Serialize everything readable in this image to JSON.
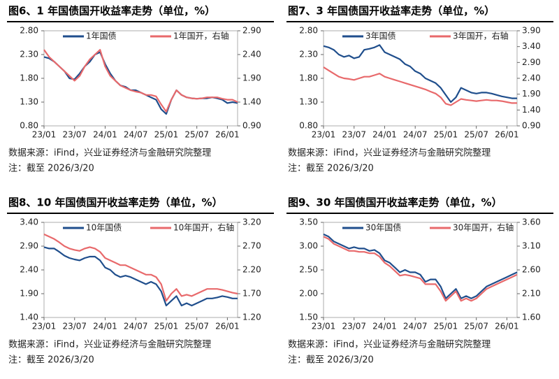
{
  "chart_data": [
    {
      "type": "line",
      "title": "图6、1 年国债国开收益率走势（单位，%）",
      "notes": [
        "数据来源：iFind，兴业证券经济与金融研究院整理",
        "注：截至 2026/3/20"
      ],
      "x": [
        "23/01",
        null,
        null,
        null,
        null,
        null,
        "23/07",
        null,
        null,
        null,
        null,
        null,
        "24/01",
        null,
        null,
        null,
        null,
        null,
        "24/07",
        null,
        null,
        null,
        null,
        null,
        "25/01",
        null,
        null,
        null,
        null,
        null,
        "25/07",
        null,
        null,
        null,
        null,
        null,
        "26/01",
        null,
        null
      ],
      "ylim": [
        0.8,
        2.8
      ],
      "yticks": [
        {
          "value": 0.8,
          "label": "0.80"
        },
        {
          "value": 1.3,
          "label": "1.30"
        },
        {
          "value": 1.8,
          "label": "1.80"
        },
        {
          "value": 2.3,
          "label": "2.30"
        },
        {
          "value": 2.8,
          "label": "2.80"
        }
      ],
      "y2lim": [
        0.9,
        2.9
      ],
      "y2ticks": [
        {
          "value": 0.9,
          "label": "0.90"
        },
        {
          "value": 1.4,
          "label": "1.40"
        },
        {
          "value": 1.9,
          "label": "1.90"
        },
        {
          "value": 2.4,
          "label": "2.40"
        },
        {
          "value": 2.9,
          "label": "2.90"
        }
      ],
      "series": [
        {
          "name": "1年国债",
          "color": "#1f4e8c",
          "values": [
            2.25,
            2.22,
            2.15,
            2.05,
            1.95,
            1.8,
            1.78,
            1.9,
            2.05,
            2.15,
            2.3,
            2.35,
            2.1,
            1.9,
            1.75,
            1.65,
            1.62,
            1.55,
            1.55,
            1.5,
            1.45,
            1.4,
            1.35,
            1.15,
            1.05,
            1.35,
            1.55,
            1.45,
            1.4,
            1.38,
            1.37,
            1.38,
            1.38,
            1.4,
            1.38,
            1.35,
            1.28,
            1.3,
            1.28
          ]
        },
        {
          "name": "1年国开，右轴",
          "color": "#e8696b",
          "axis": "y2",
          "values": [
            2.5,
            2.35,
            2.25,
            2.15,
            2.05,
            1.95,
            1.85,
            1.95,
            2.15,
            2.3,
            2.4,
            2.5,
            2.15,
            1.95,
            1.85,
            1.75,
            1.7,
            1.65,
            1.62,
            1.6,
            1.55,
            1.55,
            1.52,
            1.35,
            1.2,
            1.45,
            1.65,
            1.55,
            1.5,
            1.48,
            1.47,
            1.48,
            1.5,
            1.5,
            1.5,
            1.47,
            1.45,
            1.45,
            1.4
          ]
        }
      ]
    },
    {
      "type": "line",
      "title": "图7、3 年国债国开收益率走势（单位，%）",
      "notes": [
        "数据来源：iFind，兴业证券经济与金融研究院整理",
        "注：截至 2026/3/20"
      ],
      "x": [
        "23/01",
        null,
        null,
        null,
        null,
        null,
        "23/07",
        null,
        null,
        null,
        null,
        null,
        "24/01",
        null,
        null,
        null,
        null,
        null,
        "24/07",
        null,
        null,
        null,
        null,
        null,
        "25/01",
        null,
        null,
        null,
        null,
        null,
        "25/07",
        null,
        null,
        null,
        null,
        null,
        "26/01",
        null,
        null
      ],
      "ylim": [
        0.8,
        2.8
      ],
      "yticks": [
        {
          "value": 0.8,
          "label": "0.80"
        },
        {
          "value": 1.3,
          "label": "1.30"
        },
        {
          "value": 1.8,
          "label": "1.80"
        },
        {
          "value": 2.3,
          "label": "2.30"
        },
        {
          "value": 2.8,
          "label": "2.80"
        }
      ],
      "y2lim": [
        0.9,
        3.9
      ],
      "y2ticks": [
        {
          "value": 0.9,
          "label": "0.90"
        },
        {
          "value": 1.4,
          "label": "1.40"
        },
        {
          "value": 1.9,
          "label": "1.90"
        },
        {
          "value": 2.4,
          "label": "2.40"
        },
        {
          "value": 2.9,
          "label": "2.90"
        },
        {
          "value": 3.4,
          "label": "3.40"
        },
        {
          "value": 3.9,
          "label": "3.90"
        }
      ],
      "series": [
        {
          "name": "3年国债",
          "color": "#1f4e8c",
          "values": [
            2.48,
            2.45,
            2.4,
            2.3,
            2.25,
            2.28,
            2.22,
            2.25,
            2.4,
            2.42,
            2.45,
            2.5,
            2.35,
            2.3,
            2.25,
            2.2,
            2.1,
            2.05,
            1.95,
            1.9,
            1.8,
            1.75,
            1.7,
            1.6,
            1.45,
            1.3,
            1.4,
            1.6,
            1.55,
            1.5,
            1.48,
            1.5,
            1.5,
            1.48,
            1.45,
            1.42,
            1.4,
            1.38,
            1.38
          ]
        },
        {
          "name": "3年国开，右轴",
          "color": "#e8696b",
          "axis": "y2",
          "values": [
            2.75,
            2.65,
            2.55,
            2.45,
            2.4,
            2.38,
            2.35,
            2.4,
            2.45,
            2.45,
            2.5,
            2.55,
            2.45,
            2.4,
            2.35,
            2.3,
            2.25,
            2.2,
            2.15,
            2.1,
            2.05,
            1.98,
            1.92,
            1.8,
            1.6,
            1.55,
            1.65,
            1.75,
            1.72,
            1.7,
            1.68,
            1.7,
            1.72,
            1.7,
            1.7,
            1.68,
            1.65,
            1.62,
            1.62
          ]
        }
      ]
    },
    {
      "type": "line",
      "title": "图8、10 年国债国开收益率走势（单位，%）",
      "notes": [
        "数据来源：iFind，兴业证券经济与金融研究院整理",
        "注：截至 2026/3/20"
      ],
      "x": [
        "23/01",
        null,
        null,
        null,
        null,
        null,
        "23/07",
        null,
        null,
        null,
        null,
        null,
        "24/01",
        null,
        null,
        null,
        null,
        null,
        "24/07",
        null,
        null,
        null,
        null,
        null,
        "25/01",
        null,
        null,
        null,
        null,
        null,
        "25/07",
        null,
        null,
        null,
        null,
        null,
        "26/01",
        null,
        null
      ],
      "ylim": [
        1.4,
        3.4
      ],
      "yticks": [
        {
          "value": 1.4,
          "label": "1.40"
        },
        {
          "value": 1.9,
          "label": "1.90"
        },
        {
          "value": 2.4,
          "label": "2.40"
        },
        {
          "value": 2.9,
          "label": "2.90"
        },
        {
          "value": 3.4,
          "label": "3.40"
        }
      ],
      "y2lim": [
        1.2,
        3.2
      ],
      "y2ticks": [
        {
          "value": 1.2,
          "label": "1.20"
        },
        {
          "value": 1.7,
          "label": "1.70"
        },
        {
          "value": 2.2,
          "label": "2.20"
        },
        {
          "value": 2.7,
          "label": "2.70"
        },
        {
          "value": 3.2,
          "label": "3.20"
        }
      ],
      "series": [
        {
          "name": "10年国债",
          "color": "#1f4e8c",
          "values": [
            2.88,
            2.85,
            2.85,
            2.78,
            2.7,
            2.65,
            2.62,
            2.6,
            2.65,
            2.68,
            2.68,
            2.6,
            2.45,
            2.4,
            2.3,
            2.25,
            2.28,
            2.25,
            2.2,
            2.15,
            2.1,
            2.15,
            2.1,
            1.95,
            1.65,
            1.75,
            1.85,
            1.65,
            1.7,
            1.65,
            1.7,
            1.75,
            1.8,
            1.8,
            1.82,
            1.85,
            1.83,
            1.8,
            1.8
          ]
        },
        {
          "name": "10年国开，右轴",
          "color": "#e8696b",
          "axis": "y2",
          "values": [
            2.95,
            2.9,
            2.85,
            2.78,
            2.7,
            2.65,
            2.62,
            2.6,
            2.65,
            2.68,
            2.65,
            2.58,
            2.45,
            2.4,
            2.35,
            2.3,
            2.3,
            2.25,
            2.2,
            2.15,
            2.1,
            2.1,
            2.05,
            1.9,
            1.55,
            1.7,
            1.8,
            1.65,
            1.68,
            1.65,
            1.7,
            1.75,
            1.8,
            1.8,
            1.8,
            1.78,
            1.75,
            1.72,
            1.7
          ]
        }
      ]
    },
    {
      "type": "line",
      "title": "图9、30 年国债国开收益率走势（单位，%）",
      "notes": [
        "数据来源：iFind，兴业证券经济与金融研究院整理",
        "注：截至 2026/3/20"
      ],
      "x": [
        "23/01",
        null,
        null,
        null,
        null,
        null,
        "23/07",
        null,
        null,
        null,
        null,
        null,
        "24/01",
        null,
        null,
        null,
        null,
        null,
        "24/07",
        null,
        null,
        null,
        null,
        null,
        "25/01",
        null,
        null,
        null,
        null,
        null,
        "25/07",
        null,
        null,
        null,
        null,
        null,
        "26/01",
        null,
        null
      ],
      "ylim": [
        1.5,
        3.5
      ],
      "yticks": [
        {
          "value": 1.5,
          "label": "1.50"
        },
        {
          "value": 2.0,
          "label": "2.00"
        },
        {
          "value": 2.5,
          "label": "2.50"
        },
        {
          "value": 3.0,
          "label": "3.00"
        },
        {
          "value": 3.5,
          "label": "3.50"
        }
      ],
      "y2lim": [
        1.6,
        3.6
      ],
      "y2ticks": [
        {
          "value": 1.6,
          "label": "1.60"
        },
        {
          "value": 2.1,
          "label": "2.10"
        },
        {
          "value": 2.6,
          "label": "2.60"
        },
        {
          "value": 3.1,
          "label": "3.10"
        },
        {
          "value": 3.6,
          "label": "3.60"
        }
      ],
      "series": [
        {
          "name": "30年国债",
          "color": "#1f4e8c",
          "values": [
            3.25,
            3.2,
            3.1,
            3.05,
            3.0,
            2.95,
            2.98,
            2.95,
            2.95,
            2.9,
            2.92,
            2.85,
            2.7,
            2.65,
            2.55,
            2.45,
            2.5,
            2.45,
            2.45,
            2.4,
            2.25,
            2.3,
            2.3,
            2.15,
            1.9,
            2.0,
            2.1,
            1.9,
            1.95,
            1.9,
            1.95,
            2.05,
            2.15,
            2.2,
            2.25,
            2.3,
            2.35,
            2.4,
            2.45
          ]
        },
        {
          "name": "30年国开，右轴",
          "color": "#e8696b",
          "axis": "y2",
          "values": [
            3.3,
            3.25,
            3.15,
            3.1,
            3.05,
            3.0,
            3.0,
            2.98,
            2.98,
            2.95,
            2.95,
            2.88,
            2.75,
            2.68,
            2.58,
            2.48,
            2.5,
            2.48,
            2.45,
            2.42,
            2.3,
            2.3,
            2.3,
            2.15,
            1.95,
            2.05,
            2.15,
            1.95,
            2.0,
            1.95,
            2.0,
            2.1,
            2.2,
            2.25,
            2.3,
            2.35,
            2.4,
            2.45,
            2.5
          ]
        }
      ]
    }
  ]
}
